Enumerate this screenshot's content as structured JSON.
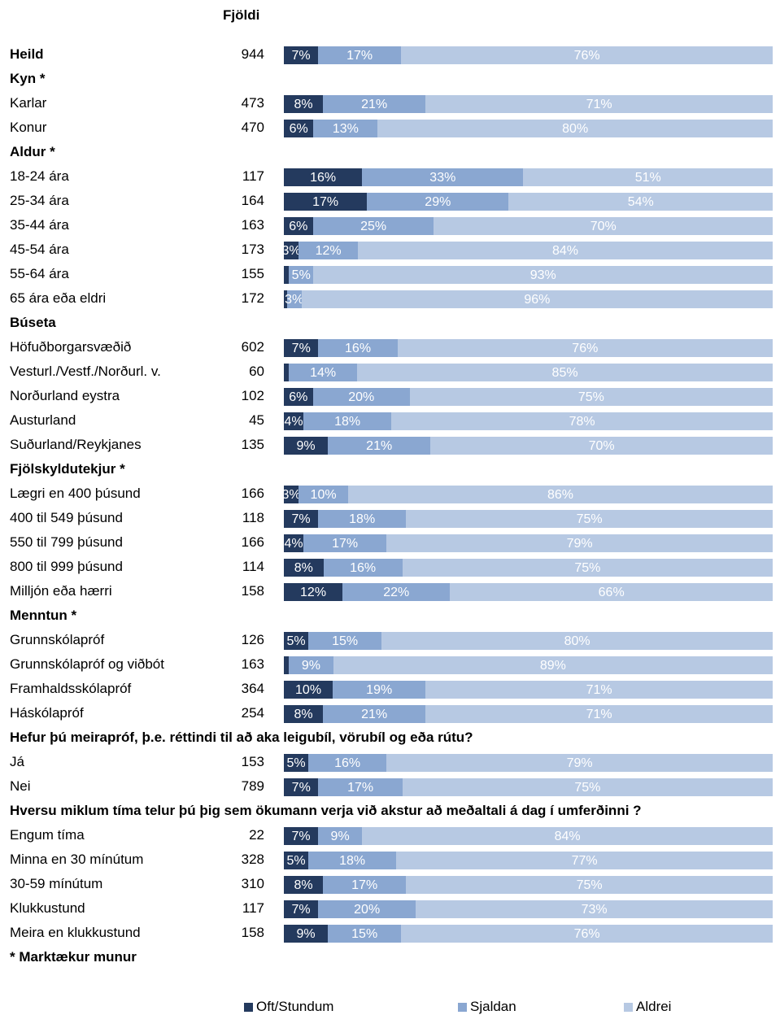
{
  "chart_data": {
    "type": "bar",
    "orientation": "horizontal-stacked-100",
    "count_header": "Fjöldi",
    "colors": {
      "Oft/Stundum": "#243a5e",
      "Sjaldan": "#8aa7d1",
      "Aldrei": "#b7c9e3"
    },
    "series": [
      {
        "name": "Oft/Stundum"
      },
      {
        "name": "Sjaldan"
      },
      {
        "name": "Aldrei"
      }
    ],
    "rows": [
      {
        "kind": "data",
        "label": "Heild",
        "bold": true,
        "n": "944",
        "values": [
          7,
          17,
          76
        ],
        "texts": [
          "7%",
          "17%",
          "76%"
        ]
      },
      {
        "kind": "header",
        "label": "Kyn *"
      },
      {
        "kind": "data",
        "label": "Karlar",
        "n": "473",
        "values": [
          8,
          21,
          71
        ],
        "texts": [
          "8%",
          "21%",
          "71%"
        ]
      },
      {
        "kind": "data",
        "label": "Konur",
        "n": "470",
        "values": [
          6,
          13,
          80
        ],
        "texts": [
          "6%",
          "13%",
          "80%"
        ]
      },
      {
        "kind": "header",
        "label": "Aldur *"
      },
      {
        "kind": "data",
        "label": "18-24 ára",
        "n": "117",
        "values": [
          16,
          33,
          51
        ],
        "texts": [
          "16%",
          "33%",
          "51%"
        ]
      },
      {
        "kind": "data",
        "label": "25-34 ára",
        "n": "164",
        "values": [
          17,
          29,
          54
        ],
        "texts": [
          "17%",
          "29%",
          "54%"
        ]
      },
      {
        "kind": "data",
        "label": "35-44 ára",
        "n": "163",
        "values": [
          6,
          25,
          70
        ],
        "texts": [
          "6%",
          "25%",
          "70%"
        ]
      },
      {
        "kind": "data",
        "label": "45-54 ára",
        "n": "173",
        "values": [
          3,
          12,
          84
        ],
        "texts": [
          "3%",
          "12%",
          "84%"
        ]
      },
      {
        "kind": "data",
        "label": "55-64 ára",
        "n": "155",
        "values": [
          1,
          5,
          93
        ],
        "texts": [
          "",
          "5%",
          "93%"
        ]
      },
      {
        "kind": "data",
        "label": "65 ára eða eldri",
        "n": "172",
        "values": [
          0.6,
          3,
          96
        ],
        "texts": [
          "",
          "3%",
          "96%"
        ]
      },
      {
        "kind": "header",
        "label": "Búseta"
      },
      {
        "kind": "data",
        "label": "Höfuðborgarsvæðið",
        "n": "602",
        "values": [
          7,
          16,
          76
        ],
        "texts": [
          "7%",
          "16%",
          "76%"
        ]
      },
      {
        "kind": "data",
        "label": "Vesturl./Vestf./Norðurl. v.",
        "n": "60",
        "values": [
          1,
          14,
          85
        ],
        "texts": [
          "",
          "14%",
          "85%"
        ]
      },
      {
        "kind": "data",
        "label": "Norðurland eystra",
        "n": "102",
        "values": [
          6,
          20,
          75
        ],
        "texts": [
          "6%",
          "20%",
          "75%"
        ]
      },
      {
        "kind": "data",
        "label": "Austurland",
        "n": "45",
        "values": [
          4,
          18,
          78
        ],
        "texts": [
          "4%",
          "18%",
          "78%"
        ]
      },
      {
        "kind": "data",
        "label": "Suðurland/Reykjanes",
        "n": "135",
        "values": [
          9,
          21,
          70
        ],
        "texts": [
          "9%",
          "21%",
          "70%"
        ]
      },
      {
        "kind": "header",
        "label": "Fjölskyldutekjur *"
      },
      {
        "kind": "data",
        "label": "Lægri en 400 þúsund",
        "n": "166",
        "values": [
          3,
          10,
          86
        ],
        "texts": [
          "3%",
          "10%",
          "86%"
        ]
      },
      {
        "kind": "data",
        "label": "400 til 549 þúsund",
        "n": "118",
        "values": [
          7,
          18,
          75
        ],
        "texts": [
          "7%",
          "18%",
          "75%"
        ]
      },
      {
        "kind": "data",
        "label": "550 til 799 þúsund",
        "n": "166",
        "values": [
          4,
          17,
          79
        ],
        "texts": [
          "4%",
          "17%",
          "79%"
        ]
      },
      {
        "kind": "data",
        "label": "800 til 999 þúsund",
        "n": "114",
        "values": [
          8,
          16,
          75
        ],
        "texts": [
          "8%",
          "16%",
          "75%"
        ]
      },
      {
        "kind": "data",
        "label": "Milljón eða hærri",
        "n": "158",
        "values": [
          12,
          22,
          66
        ],
        "texts": [
          "12%",
          "22%",
          "66%"
        ]
      },
      {
        "kind": "header",
        "label": "Menntun *"
      },
      {
        "kind": "data",
        "label": "Grunnskólapróf",
        "n": "126",
        "values": [
          5,
          15,
          80
        ],
        "texts": [
          "5%",
          "15%",
          "80%"
        ]
      },
      {
        "kind": "data",
        "label": "Grunnskólapróf og viðbót",
        "n": "163",
        "values": [
          1,
          9,
          89
        ],
        "texts": [
          "",
          "9%",
          "89%"
        ]
      },
      {
        "kind": "data",
        "label": "Framhaldsskólapróf",
        "n": "364",
        "values": [
          10,
          19,
          71
        ],
        "texts": [
          "10%",
          "19%",
          "71%"
        ]
      },
      {
        "kind": "data",
        "label": "Háskólapróf",
        "n": "254",
        "values": [
          8,
          21,
          71
        ],
        "texts": [
          "8%",
          "21%",
          "71%"
        ]
      },
      {
        "kind": "header",
        "label": "Hefur þú meirapróf, þ.e. réttindi til að aka leigubíl, vörubíl og eða rútu?"
      },
      {
        "kind": "data",
        "label": "Já",
        "n": "153",
        "values": [
          5,
          16,
          79
        ],
        "texts": [
          "5%",
          "16%",
          "79%"
        ]
      },
      {
        "kind": "data",
        "label": "Nei",
        "n": "789",
        "values": [
          7,
          17,
          75
        ],
        "texts": [
          "7%",
          "17%",
          "75%"
        ]
      },
      {
        "kind": "header",
        "label": "Hversu miklum tíma telur þú þig sem ökumann verja við akstur að meðaltali á dag í umferðinni ?"
      },
      {
        "kind": "data",
        "label": "Engum tíma",
        "n": "22",
        "values": [
          7,
          9,
          84
        ],
        "texts": [
          "7%",
          "9%",
          "84%"
        ]
      },
      {
        "kind": "data",
        "label": "Minna en 30 mínútum",
        "n": "328",
        "values": [
          5,
          18,
          77
        ],
        "texts": [
          "5%",
          "18%",
          "77%"
        ]
      },
      {
        "kind": "data",
        "label": "30-59 mínútum",
        "n": "310",
        "values": [
          8,
          17,
          75
        ],
        "texts": [
          "8%",
          "17%",
          "75%"
        ]
      },
      {
        "kind": "data",
        "label": "Klukkustund",
        "n": "117",
        "values": [
          7,
          20,
          73
        ],
        "texts": [
          "7%",
          "20%",
          "73%"
        ]
      },
      {
        "kind": "data",
        "label": "Meira en klukkustund",
        "n": "158",
        "values": [
          9,
          15,
          76
        ],
        "texts": [
          "9%",
          "15%",
          "76%"
        ]
      },
      {
        "kind": "header",
        "label": "* Marktækur munur"
      }
    ],
    "legend": [
      "Oft/Stundum",
      "Sjaldan",
      "Aldrei"
    ],
    "legend_position": "bottom"
  }
}
